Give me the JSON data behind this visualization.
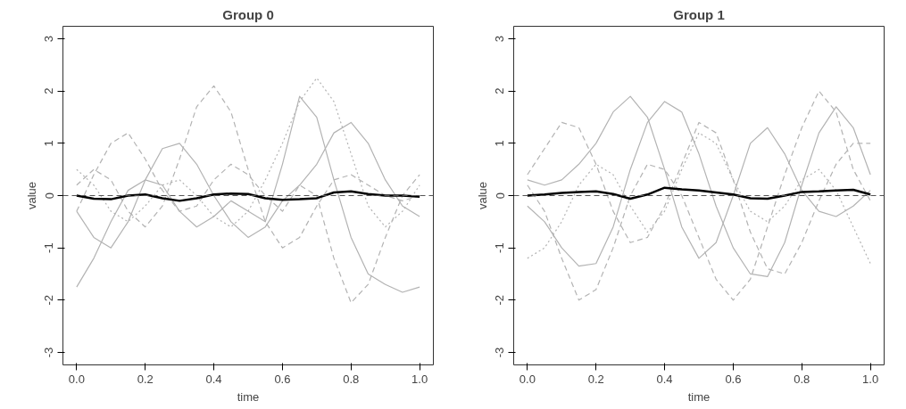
{
  "chart_data": [
    {
      "type": "line",
      "title": "Group 0",
      "xlabel": "time",
      "ylabel": "value",
      "xlim": [
        -0.04,
        1.04
      ],
      "ylim": [
        -3.24,
        3.24
      ],
      "xticks": [
        {
          "value": 0,
          "label": "0.0"
        },
        {
          "value": 0.2,
          "label": "0.2"
        },
        {
          "value": 0.4,
          "label": "0.4"
        },
        {
          "value": 0.6,
          "label": "0.6"
        },
        {
          "value": 0.8,
          "label": "0.8"
        },
        {
          "value": 1,
          "label": "1.0"
        }
      ],
      "yticks": [
        -3,
        -2,
        -1,
        0,
        1,
        2,
        3
      ],
      "grid": false,
      "ref_lines": [
        {
          "axis": "y",
          "value": 0,
          "color": "#555555",
          "line_style": "dashed"
        }
      ],
      "x": [
        0,
        0.05,
        0.1,
        0.15,
        0.2,
        0.25,
        0.3,
        0.35,
        0.4,
        0.45,
        0.5,
        0.55,
        0.6,
        0.65,
        0.7,
        0.75,
        0.8,
        0.85,
        0.9,
        0.95,
        1
      ],
      "series": [
        {
          "color": "#b3b3b3",
          "line_style": "solid",
          "values": [
            -1.75,
            -1.2,
            -0.5,
            0.1,
            0.3,
            0.2,
            -0.3,
            -0.6,
            -0.4,
            -0.1,
            -0.3,
            -0.5,
            0.6,
            1.9,
            1.5,
            0.3,
            -0.8,
            -1.5,
            -1.7,
            -1.85,
            -1.75
          ]
        },
        {
          "color": "#b3b3b3",
          "line_style": "dashed",
          "values": [
            0.2,
            0.5,
            0.3,
            -0.3,
            -0.6,
            -0.2,
            0.7,
            1.7,
            2.1,
            1.6,
            0.5,
            -0.5,
            -1.0,
            -0.8,
            -0.2,
            0.3,
            0.4,
            0.2,
            0.0,
            -0.1,
            0.0
          ]
        },
        {
          "color": "#b3b3b3",
          "line_style": "dashed",
          "values": [
            -0.3,
            0.4,
            1.0,
            1.2,
            0.7,
            0.1,
            -0.3,
            -0.2,
            0.3,
            0.6,
            0.4,
            0.0,
            -0.3,
            0.2,
            0.0,
            -1.2,
            -2.05,
            -1.7,
            -0.8,
            0.0,
            0.4
          ]
        },
        {
          "color": "#b3b3b3",
          "line_style": "dotted",
          "values": [
            0.5,
            0.2,
            -0.3,
            -0.5,
            -0.2,
            0.2,
            0.3,
            0.0,
            -0.4,
            -0.6,
            -0.3,
            0.3,
            1.0,
            1.8,
            2.25,
            1.8,
            0.8,
            -0.2,
            -0.6,
            -0.3,
            0.2
          ]
        },
        {
          "color": "#b3b3b3",
          "line_style": "solid",
          "values": [
            -0.3,
            -0.8,
            -1.0,
            -0.5,
            0.3,
            0.9,
            1.0,
            0.6,
            0.0,
            -0.5,
            -0.8,
            -0.6,
            -0.1,
            0.2,
            0.6,
            1.2,
            1.4,
            1.0,
            0.3,
            -0.2,
            -0.4
          ]
        },
        {
          "color": "#000000",
          "line_style": "solid",
          "values": [
            0,
            -0.06,
            -0.07,
            0.0,
            0.02,
            -0.05,
            -0.1,
            -0.05,
            0.02,
            0.04,
            0.03,
            -0.05,
            -0.08,
            -0.07,
            -0.05,
            0.06,
            0.08,
            0.03,
            0.0,
            0.0,
            -0.02
          ]
        }
      ]
    },
    {
      "type": "line",
      "title": "Group 1",
      "xlabel": "time",
      "ylabel": "value",
      "xlim": [
        -0.04,
        1.04
      ],
      "ylim": [
        -3.24,
        3.24
      ],
      "xticks": [
        {
          "value": 0,
          "label": "0.0"
        },
        {
          "value": 0.2,
          "label": "0.2"
        },
        {
          "value": 0.4,
          "label": "0.4"
        },
        {
          "value": 0.6,
          "label": "0.6"
        },
        {
          "value": 0.8,
          "label": "0.8"
        },
        {
          "value": 1,
          "label": "1.0"
        }
      ],
      "yticks": [
        -3,
        -2,
        -1,
        0,
        1,
        2,
        3
      ],
      "grid": false,
      "ref_lines": [
        {
          "axis": "y",
          "value": 0,
          "color": "#555555",
          "line_style": "dashed"
        }
      ],
      "x": [
        0,
        0.05,
        0.1,
        0.15,
        0.2,
        0.25,
        0.3,
        0.35,
        0.4,
        0.45,
        0.5,
        0.55,
        0.6,
        0.65,
        0.7,
        0.75,
        0.8,
        0.85,
        0.9,
        0.95,
        1
      ],
      "series": [
        {
          "color": "#b3b3b3",
          "line_style": "solid",
          "values": [
            0.3,
            0.2,
            0.3,
            0.6,
            1.0,
            1.6,
            1.9,
            1.5,
            0.5,
            -0.6,
            -1.2,
            -0.9,
            0.0,
            1.0,
            1.3,
            0.8,
            0.1,
            -0.3,
            -0.4,
            -0.2,
            0.1
          ]
        },
        {
          "color": "#b3b3b3",
          "line_style": "solid",
          "values": [
            -0.2,
            -0.5,
            -1.0,
            -1.35,
            -1.3,
            -0.6,
            0.5,
            1.4,
            1.8,
            1.6,
            0.8,
            -0.2,
            -1.0,
            -1.5,
            -1.55,
            -0.9,
            0.2,
            1.2,
            1.7,
            1.3,
            0.4
          ]
        },
        {
          "color": "#b3b3b3",
          "line_style": "dashed",
          "values": [
            0.2,
            -0.3,
            -1.2,
            -2.0,
            -1.8,
            -1.0,
            0.0,
            0.6,
            0.5,
            0.0,
            -0.8,
            -1.6,
            -2.0,
            -1.6,
            -0.6,
            0.4,
            1.3,
            2.0,
            1.6,
            0.5,
            -0.1
          ]
        },
        {
          "color": "#b3b3b3",
          "line_style": "dashed",
          "values": [
            0.4,
            0.9,
            1.4,
            1.3,
            0.6,
            -0.3,
            -0.9,
            -0.8,
            -0.2,
            0.6,
            1.4,
            1.2,
            0.3,
            -0.7,
            -1.4,
            -1.5,
            -0.9,
            -0.1,
            0.6,
            1.0,
            1.0
          ]
        },
        {
          "color": "#b3b3b3",
          "line_style": "dotted",
          "values": [
            -1.2,
            -1.0,
            -0.5,
            0.2,
            0.6,
            0.4,
            -0.2,
            -0.7,
            -0.3,
            0.5,
            1.2,
            1.0,
            0.3,
            -0.3,
            -0.5,
            -0.2,
            0.3,
            0.5,
            0.1,
            -0.6,
            -1.3
          ]
        },
        {
          "color": "#000000",
          "line_style": "solid",
          "values": [
            0,
            0.02,
            0.05,
            0.07,
            0.08,
            0.03,
            -0.06,
            0.02,
            0.15,
            0.12,
            0.1,
            0.06,
            0.02,
            -0.05,
            -0.06,
            0.0,
            0.07,
            0.08,
            0.1,
            0.11,
            0.02
          ]
        }
      ]
    }
  ]
}
